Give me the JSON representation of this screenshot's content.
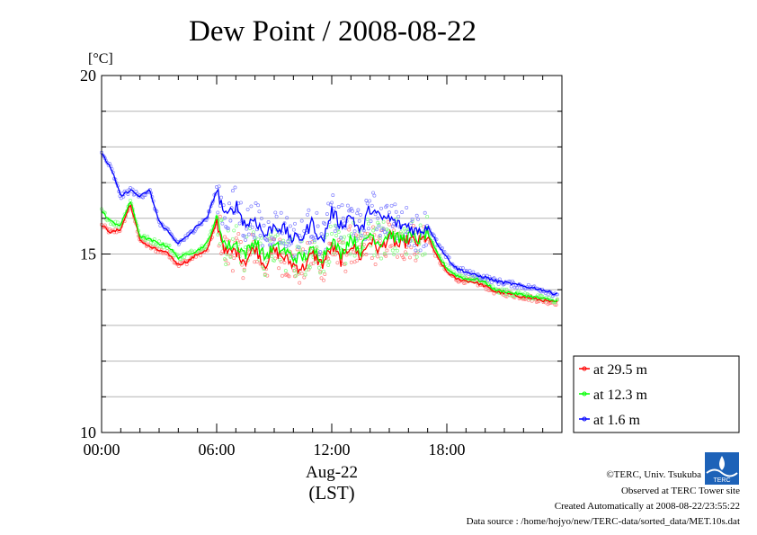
{
  "chart_data": {
    "type": "line",
    "title": "Dew Point / 2008-08-22",
    "ylabel": "[°C]",
    "xlabel": "Aug-22",
    "xlabel2": "(LST)",
    "x_unit": "hours LST",
    "xlim": [
      0,
      24
    ],
    "ylim": [
      10,
      20
    ],
    "x_ticks": [
      {
        "value": 0,
        "label": "00:00"
      },
      {
        "value": 6,
        "label": "06:00"
      },
      {
        "value": 12,
        "label": "12:00"
      },
      {
        "value": 18,
        "label": "18:00"
      }
    ],
    "y_ticks": [
      {
        "value": 10,
        "label": "10"
      },
      {
        "value": 15,
        "label": "15"
      },
      {
        "value": 20,
        "label": "20"
      }
    ],
    "grid": true,
    "legend_position": "right-bottom",
    "x": [
      0.0,
      0.5,
      1.0,
      1.5,
      2.0,
      2.5,
      3.0,
      3.5,
      4.0,
      4.5,
      5.0,
      5.5,
      6.0,
      6.5,
      7.0,
      7.5,
      8.0,
      8.5,
      9.0,
      9.5,
      10.0,
      10.5,
      11.0,
      11.5,
      12.0,
      12.5,
      13.0,
      13.5,
      14.0,
      14.5,
      15.0,
      15.5,
      16.0,
      16.5,
      17.0,
      17.5,
      18.0,
      18.5,
      19.0,
      19.5,
      20.0,
      20.5,
      21.0,
      21.5,
      22.0,
      22.5,
      23.0,
      23.5
    ],
    "series": [
      {
        "name": "at 29.5 m",
        "color": "#ff0000",
        "values": [
          15.8,
          15.6,
          15.7,
          16.4,
          15.4,
          15.2,
          15.1,
          15.0,
          14.7,
          14.8,
          15.0,
          15.1,
          15.9,
          15.0,
          15.1,
          14.8,
          15.2,
          14.7,
          15.1,
          14.9,
          14.7,
          14.6,
          15.0,
          14.7,
          15.2,
          14.8,
          15.3,
          14.9,
          15.4,
          15.1,
          15.5,
          15.2,
          15.4,
          15.3,
          15.5,
          14.9,
          14.5,
          14.3,
          14.25,
          14.2,
          14.1,
          13.95,
          13.9,
          13.85,
          13.8,
          13.75,
          13.7,
          13.65
        ]
      },
      {
        "name": "at 12.3 m",
        "color": "#00ff00",
        "values": [
          16.2,
          15.9,
          15.8,
          16.5,
          15.5,
          15.4,
          15.3,
          15.2,
          14.9,
          15.0,
          15.1,
          15.3,
          16.0,
          15.2,
          15.3,
          15.0,
          15.4,
          14.9,
          15.2,
          15.1,
          14.9,
          14.9,
          15.1,
          14.9,
          15.4,
          15.0,
          15.5,
          15.1,
          15.6,
          15.3,
          15.6,
          15.4,
          15.5,
          15.4,
          15.6,
          15.0,
          14.6,
          14.4,
          14.3,
          14.3,
          14.2,
          14.0,
          13.95,
          13.9,
          13.85,
          13.8,
          13.75,
          13.7
        ]
      },
      {
        "name": "at 1.6 m",
        "color": "#0000ff",
        "values": [
          17.8,
          17.4,
          16.6,
          16.8,
          16.6,
          16.8,
          15.9,
          15.6,
          15.3,
          15.5,
          15.8,
          16.0,
          16.8,
          16.0,
          16.4,
          15.8,
          16.0,
          15.5,
          15.8,
          15.7,
          15.4,
          15.5,
          15.9,
          15.3,
          16.2,
          15.8,
          16.1,
          15.6,
          16.3,
          16.0,
          16.0,
          15.8,
          15.8,
          15.6,
          15.8,
          15.3,
          14.9,
          14.6,
          14.5,
          14.4,
          14.35,
          14.25,
          14.2,
          14.15,
          14.1,
          14.05,
          14.0,
          13.9
        ]
      }
    ]
  },
  "footer": {
    "copyright": "©TERC, Univ. Tsukuba",
    "observed": "Observed at TERC Tower site",
    "created": "Created Automatically at 2008-08-22/23:55:22",
    "source": "Data source : /home/hojyo/new/TERC-data/sorted_data/MET.10s.dat",
    "logo_text": "TERC"
  }
}
